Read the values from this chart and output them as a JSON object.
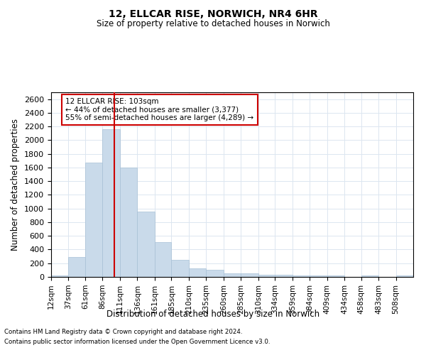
{
  "title": "12, ELLCAR RISE, NORWICH, NR4 6HR",
  "subtitle": "Size of property relative to detached houses in Norwich",
  "xlabel": "Distribution of detached houses by size in Norwich",
  "ylabel": "Number of detached properties",
  "footnote1": "Contains HM Land Registry data © Crown copyright and database right 2024.",
  "footnote2": "Contains public sector information licensed under the Open Government Licence v3.0.",
  "annotation_title": "12 ELLCAR RISE: 103sqm",
  "annotation_line1": "← 44% of detached houses are smaller (3,377)",
  "annotation_line2": "55% of semi-detached houses are larger (4,289) →",
  "property_size": 103,
  "bar_color": "#c9daea",
  "bar_edgecolor": "#a8c0d6",
  "redline_color": "#cc0000",
  "annotation_box_edgecolor": "#cc0000",
  "grid_color": "#dce6f0",
  "background_color": "#ffffff",
  "categories": [
    "12sqm",
    "37sqm",
    "61sqm",
    "86sqm",
    "111sqm",
    "136sqm",
    "161sqm",
    "185sqm",
    "210sqm",
    "235sqm",
    "260sqm",
    "285sqm",
    "310sqm",
    "334sqm",
    "359sqm",
    "384sqm",
    "409sqm",
    "434sqm",
    "458sqm",
    "483sqm",
    "508sqm"
  ],
  "bin_edges": [
    12,
    37,
    61,
    86,
    111,
    136,
    161,
    185,
    210,
    235,
    260,
    285,
    310,
    334,
    359,
    384,
    409,
    434,
    458,
    483,
    508,
    533
  ],
  "values": [
    25,
    295,
    1670,
    2155,
    1595,
    960,
    505,
    250,
    120,
    100,
    48,
    48,
    35,
    30,
    20,
    25,
    20,
    0,
    20,
    0,
    25
  ],
  "ylim": [
    0,
    2700
  ],
  "yticks": [
    0,
    200,
    400,
    600,
    800,
    1000,
    1200,
    1400,
    1600,
    1800,
    2000,
    2200,
    2400,
    2600
  ]
}
